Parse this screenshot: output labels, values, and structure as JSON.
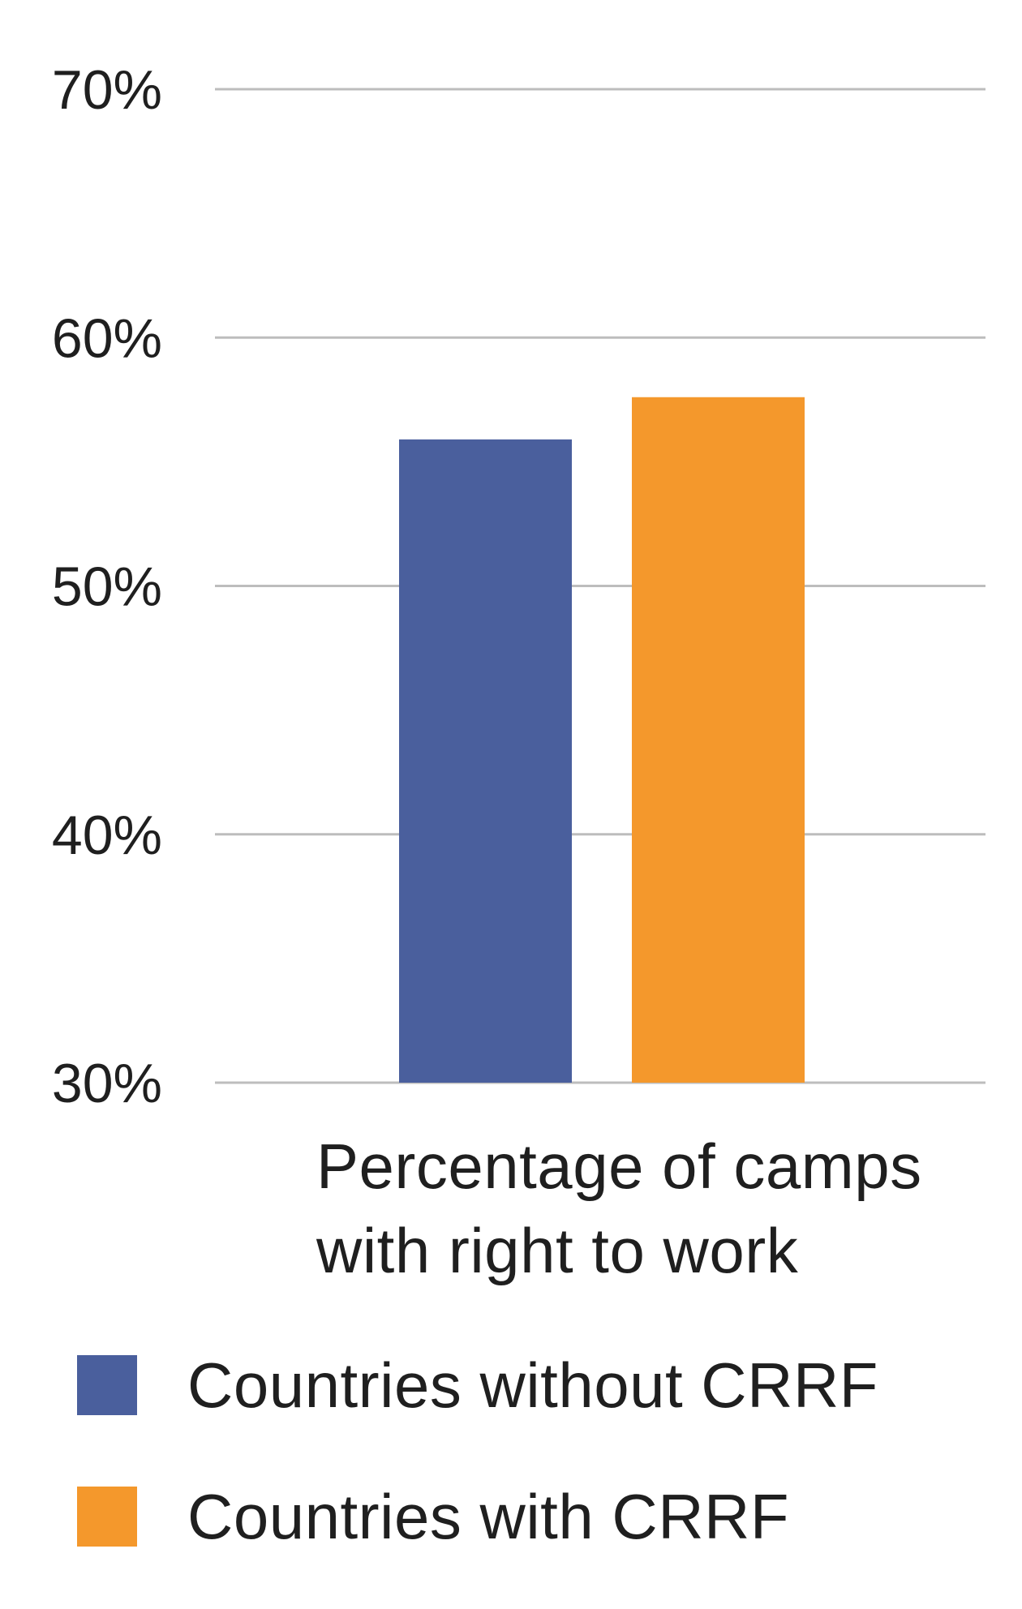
{
  "chart_data": {
    "type": "bar",
    "categories": [
      "Percentage of camps with right to work"
    ],
    "category_label_lines": [
      "Percentage of camps",
      "with right to work"
    ],
    "series": [
      {
        "name": "Countries without CRRF",
        "values": [
          55.9
        ],
        "color": "#4a5f9d"
      },
      {
        "name": "Countries with CRRF",
        "values": [
          57.6
        ],
        "color": "#f4982c"
      }
    ],
    "ylim": [
      30,
      70
    ],
    "yticks": [
      30,
      40,
      50,
      60,
      70
    ],
    "ytick_labels": [
      "30%",
      "40%",
      "50%",
      "60%",
      "70%"
    ],
    "grid": true,
    "legend_position": "bottom"
  },
  "colors": {
    "grid": "#bdbdbd",
    "text": "#1f1f1f"
  }
}
